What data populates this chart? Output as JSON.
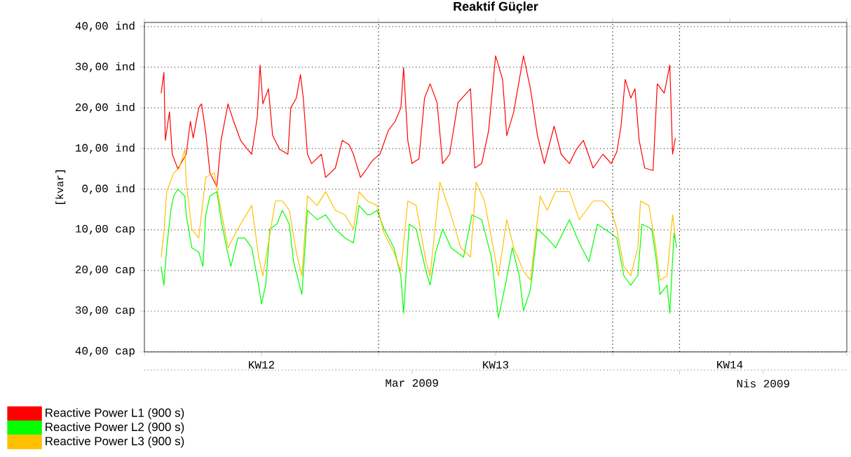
{
  "chart_data": {
    "type": "line",
    "title": "Reaktif Güçler",
    "ylabel": "[kvar]",
    "xlim": [
      "2009-03-16T00:00",
      "2009-04-06T00:00"
    ],
    "xticks": [
      {
        "value": "2009-03-16T00:00",
        "label": null
      },
      {
        "value": "2009-03-19T12:00",
        "label": "KW12"
      },
      {
        "value": "2009-03-23T00:00",
        "label": null
      },
      {
        "value": "2009-03-26T12:00",
        "label": "KW13"
      },
      {
        "value": "2009-03-30T00:00",
        "label": null
      },
      {
        "value": "2009-04-02T12:00",
        "label": "KW14"
      },
      {
        "value": "2009-04-06T00:00",
        "label": null
      }
    ],
    "x2lim": [
      "2009-03-16T00:00",
      "2009-04-06T00:00"
    ],
    "x2ticks": [
      {
        "value": "2009-03-24T00:00",
        "label": "Mar 2009"
      },
      {
        "value": "2009-04-01T00:00",
        "label": null
      },
      {
        "value": "2009-04-03T12:00",
        "label": "Nis 2009"
      }
    ],
    "ylim": [
      -40,
      41
    ],
    "yticks": [
      {
        "value": 40,
        "label": "40,00 ind"
      },
      {
        "value": 30,
        "label": "30,00 ind"
      },
      {
        "value": 20,
        "label": "20,00 ind"
      },
      {
        "value": 10,
        "label": "10,00 ind"
      },
      {
        "value": 0,
        "label": "0,00 ind"
      },
      {
        "value": -10,
        "label": "10,00 cap"
      },
      {
        "value": -20,
        "label": "20,00 cap"
      },
      {
        "value": -30,
        "label": "30,00 cap"
      },
      {
        "value": -40,
        "label": "40,00 cap"
      }
    ],
    "grid": "y",
    "legend": "bottom",
    "ref_lines": [
      {
        "axis": "x",
        "value": "2009-03-23T00:00",
        "line_style": "dotted"
      },
      {
        "axis": "x",
        "value": "2009-03-30T00:00",
        "line_style": "dotted"
      },
      {
        "axis": "x",
        "value": "2009-04-01T00:00",
        "line_style": "dotted"
      }
    ],
    "series": [
      {
        "name": "Reactive Power L1 (900 s)",
        "color": "#ff0000",
        "x": [
          "2009-03-16T12:00",
          "2009-03-16T14:00",
          "2009-03-16T15:00",
          "2009-03-16T18:00",
          "2009-03-16T20:00",
          "2009-03-17T00:00",
          "2009-03-17T06:00",
          "2009-03-17T09:00",
          "2009-03-17T11:00",
          "2009-03-17T15:00",
          "2009-03-17T17:00",
          "2009-03-17T20:00",
          "2009-03-17T23:00",
          "2009-03-18T04:00",
          "2009-03-18T07:00",
          "2009-03-18T12:00",
          "2009-03-18T16:00",
          "2009-03-18T21:00",
          "2009-03-19T02:00",
          "2009-03-19T05:00",
          "2009-03-19T09:00",
          "2009-03-19T11:00",
          "2009-03-19T13:00",
          "2009-03-19T17:00",
          "2009-03-19T20:00",
          "2009-03-20T01:00",
          "2009-03-20T07:00",
          "2009-03-20T09:00",
          "2009-03-20T13:00",
          "2009-03-20T16:00",
          "2009-03-20T18:00",
          "2009-03-20T21:00",
          "2009-03-21T00:00",
          "2009-03-21T07:00",
          "2009-03-21T10:00",
          "2009-03-21T17:00",
          "2009-03-21T22:00",
          "2009-03-22T03:00",
          "2009-03-22T06:00",
          "2009-03-22T11:00",
          "2009-03-22T16:00",
          "2009-03-22T18:00",
          "2009-03-22T21:00",
          "2009-03-23T01:00",
          "2009-03-23T07:00",
          "2009-03-23T12:00",
          "2009-03-23T16:00",
          "2009-03-23T18:00",
          "2009-03-23T21:00",
          "2009-03-24T00:00",
          "2009-03-24T05:00",
          "2009-03-24T09:00",
          "2009-03-24T13:00",
          "2009-03-24T18:00",
          "2009-03-24T22:00",
          "2009-03-25T03:00",
          "2009-03-25T09:00",
          "2009-03-25T18:00",
          "2009-03-25T21:00",
          "2009-03-26T02:00",
          "2009-03-26T07:00",
          "2009-03-26T12:00",
          "2009-03-26T17:00",
          "2009-03-26T20:00",
          "2009-03-27T01:00",
          "2009-03-27T08:00",
          "2009-03-27T13:00",
          "2009-03-27T18:00",
          "2009-03-27T23:00",
          "2009-03-28T06:00",
          "2009-03-28T11:00",
          "2009-03-28T17:00",
          "2009-03-28T22:00",
          "2009-03-29T03:00",
          "2009-03-29T10:00",
          "2009-03-29T17:00",
          "2009-03-29T23:00",
          "2009-03-30T03:00",
          "2009-03-30T06:00",
          "2009-03-30T09:00",
          "2009-03-30T13:00",
          "2009-03-30T16:00",
          "2009-03-30T19:00",
          "2009-03-30T23:00",
          "2009-03-31T05:00",
          "2009-03-31T08:00",
          "2009-03-31T13:00",
          "2009-03-31T17:00",
          "2009-03-31T19:00",
          "2009-03-31T21:00"
        ],
        "values": [
          23.6,
          28.7,
          12,
          19,
          8.6,
          5,
          8.6,
          16.7,
          12.6,
          20,
          21,
          14,
          4,
          0.6,
          12,
          21,
          16.7,
          12,
          9.8,
          8.6,
          17.8,
          30.5,
          21,
          24.7,
          13.2,
          9.8,
          8.6,
          20,
          22.4,
          28.2,
          22.4,
          8.6,
          6.3,
          8.6,
          2.9,
          5.2,
          12,
          10.9,
          8.6,
          2.9,
          5.2,
          6.3,
          7.5,
          8.6,
          14.4,
          16.7,
          20,
          29.9,
          12,
          6.3,
          7.5,
          22.4,
          25.9,
          21.3,
          6.3,
          8.6,
          21.3,
          24.7,
          5.2,
          6.3,
          14.4,
          32.8,
          27,
          13.2,
          19,
          32.8,
          24.7,
          13.2,
          6.3,
          15.5,
          8.6,
          6.3,
          9.8,
          12,
          5.2,
          8.6,
          6.3,
          9.2,
          15.5,
          27,
          22.4,
          24.7,
          12,
          5.2,
          4.6,
          25.9,
          23.6,
          30.5,
          8.6,
          12.6
        ]
      },
      {
        "name": "Reactive Power L2 (900 s)",
        "color": "#00ff00",
        "x": [
          "2009-03-16T12:00",
          "2009-03-16T14:00",
          "2009-03-16T16:00",
          "2009-03-16T19:00",
          "2009-03-16T21:00",
          "2009-03-17T00:00",
          "2009-03-17T05:00",
          "2009-03-17T06:00",
          "2009-03-17T10:00",
          "2009-03-17T15:00",
          "2009-03-17T18:00",
          "2009-03-17T20:00",
          "2009-03-17T23:00",
          "2009-03-18T04:00",
          "2009-03-18T07:00",
          "2009-03-18T11:00",
          "2009-03-18T14:00",
          "2009-03-18T19:00",
          "2009-03-19T00:00",
          "2009-03-19T05:00",
          "2009-03-19T10:00",
          "2009-03-19T12:00",
          "2009-03-19T15:00",
          "2009-03-19T18:00",
          "2009-03-19T23:00",
          "2009-03-20T03:00",
          "2009-03-20T08:00",
          "2009-03-20T11:00",
          "2009-03-20T17:00",
          "2009-03-20T21:00",
          "2009-03-21T04:00",
          "2009-03-21T10:00",
          "2009-03-21T17:00",
          "2009-03-22T00:00",
          "2009-03-22T06:00",
          "2009-03-22T10:00",
          "2009-03-22T16:00",
          "2009-03-22T18:00",
          "2009-03-22T23:00",
          "2009-03-23T04:00",
          "2009-03-23T11:00",
          "2009-03-23T16:00",
          "2009-03-23T18:00",
          "2009-03-23T22:00",
          "2009-03-24T03:00",
          "2009-03-24T10:00",
          "2009-03-24T13:00",
          "2009-03-24T17:00",
          "2009-03-24T22:00",
          "2009-03-25T04:00",
          "2009-03-25T13:00",
          "2009-03-25T19:00",
          "2009-03-26T02:00",
          "2009-03-26T09:00",
          "2009-03-26T14:00",
          "2009-03-26T19:00",
          "2009-03-27T00:00",
          "2009-03-27T05:00",
          "2009-03-27T08:00",
          "2009-03-27T13:00",
          "2009-03-27T18:00",
          "2009-03-28T01:00",
          "2009-03-28T07:00",
          "2009-03-28T17:00",
          "2009-03-29T00:00",
          "2009-03-29T07:00",
          "2009-03-29T13:00",
          "2009-03-29T23:00",
          "2009-03-30T03:00",
          "2009-03-30T08:00",
          "2009-03-30T13:00",
          "2009-03-30T18:00",
          "2009-03-30T21:00",
          "2009-03-31T04:00",
          "2009-03-31T07:00",
          "2009-03-31T10:00",
          "2009-03-31T15:00",
          "2009-03-31T17:00",
          "2009-03-31T20:00",
          "2009-03-31T22:00"
        ],
        "values": [
          -19,
          -23.6,
          -14.4,
          -5.2,
          -1.7,
          0,
          -1.7,
          -6.3,
          -14.4,
          -15.5,
          -19,
          -6.3,
          -1.7,
          -0.6,
          -7.5,
          -14.4,
          -19,
          -12,
          -12,
          -14.4,
          -23.6,
          -28.2,
          -23.6,
          -9.8,
          -8.6,
          -5.2,
          -8.6,
          -17.8,
          -25.9,
          -5.2,
          -7.5,
          -6.3,
          -9.8,
          -12,
          -13.2,
          -4,
          -6.3,
          -6.3,
          -5.2,
          -9.8,
          -14.4,
          -21.3,
          -30.5,
          -8.6,
          -9.8,
          -20.1,
          -23.6,
          -15.5,
          -9.8,
          -14.4,
          -16.7,
          -6.3,
          -7.5,
          -16.7,
          -31.6,
          -23.6,
          -14.4,
          -21.3,
          -29.9,
          -24.7,
          -9.8,
          -12,
          -14.4,
          -7.5,
          -13.2,
          -17.8,
          -8.6,
          -10.9,
          -12,
          -21.3,
          -23.6,
          -21.3,
          -8.6,
          -9.8,
          -16.7,
          -25.9,
          -23.6,
          -30.5,
          -10.9,
          -14.4
        ]
      },
      {
        "name": "Reactive Power L3 (900 s)",
        "color": "#ffc000",
        "x": [
          "2009-03-16T12:00",
          "2009-03-16T14:00",
          "2009-03-16T16:00",
          "2009-03-16T21:00",
          "2009-03-17T01:00",
          "2009-03-17T05:00",
          "2009-03-17T06:00",
          "2009-03-17T10:00",
          "2009-03-17T15:00",
          "2009-03-17T20:00",
          "2009-03-18T02:00",
          "2009-03-18T07:00",
          "2009-03-18T12:00",
          "2009-03-18T19:00",
          "2009-03-19T05:00",
          "2009-03-19T10:00",
          "2009-03-19T13:00",
          "2009-03-19T17:00",
          "2009-03-19T22:00",
          "2009-03-20T03:00",
          "2009-03-20T08:00",
          "2009-03-20T13:00",
          "2009-03-20T17:00",
          "2009-03-20T21:00",
          "2009-03-21T04:00",
          "2009-03-21T10:00",
          "2009-03-21T17:00",
          "2009-03-22T00:00",
          "2009-03-22T06:00",
          "2009-03-22T10:00",
          "2009-03-22T16:00",
          "2009-03-22T23:00",
          "2009-03-23T04:00",
          "2009-03-23T11:00",
          "2009-03-23T16:00",
          "2009-03-23T21:00",
          "2009-03-24T03:00",
          "2009-03-24T10:00",
          "2009-03-24T13:00",
          "2009-03-24T20:00",
          "2009-03-25T03:00",
          "2009-03-25T11:00",
          "2009-03-25T18:00",
          "2009-03-25T22:00",
          "2009-03-26T04:00",
          "2009-03-26T09:00",
          "2009-03-26T14:00",
          "2009-03-26T20:00",
          "2009-03-27T01:00",
          "2009-03-27T08:00",
          "2009-03-27T13:00",
          "2009-03-27T20:00",
          "2009-03-28T01:00",
          "2009-03-28T07:00",
          "2009-03-28T17:00",
          "2009-03-29T00:00",
          "2009-03-29T10:00",
          "2009-03-29T17:00",
          "2009-03-29T23:00",
          "2009-03-30T03:00",
          "2009-03-30T08:00",
          "2009-03-30T13:00",
          "2009-03-30T18:00",
          "2009-03-30T20:00",
          "2009-03-31T02:00",
          "2009-03-31T07:00",
          "2009-03-31T10:00",
          "2009-03-31T15:00",
          "2009-03-31T19:00",
          "2009-03-31T21:00"
        ],
        "values": [
          -16.7,
          -10.9,
          -0.6,
          4,
          5.2,
          9.8,
          1.7,
          -9.8,
          -12,
          2.9,
          4,
          -5.2,
          -14.4,
          -9.8,
          -4,
          -16.7,
          -21.3,
          -13.2,
          -2.9,
          -2.9,
          -5.2,
          -15.5,
          -21.3,
          -1.7,
          -4,
          -0.6,
          -5.2,
          -6.3,
          -9.8,
          -0.6,
          -2.9,
          -4,
          -10.9,
          -15.5,
          -20.1,
          -2.9,
          -4,
          -17.8,
          -21.3,
          1.7,
          -5.2,
          -14.4,
          -16.7,
          1.7,
          -2.9,
          -12,
          -21.3,
          -7.5,
          -14.4,
          -20.1,
          -22.4,
          -1.7,
          -5.2,
          -0.6,
          -0.6,
          -7.5,
          -2.9,
          -2.9,
          -5.2,
          -9.8,
          -19,
          -21.3,
          -14.4,
          -2.9,
          -4,
          -14.4,
          -22.4,
          -21.3,
          -6.3,
          -12
        ]
      }
    ]
  }
}
